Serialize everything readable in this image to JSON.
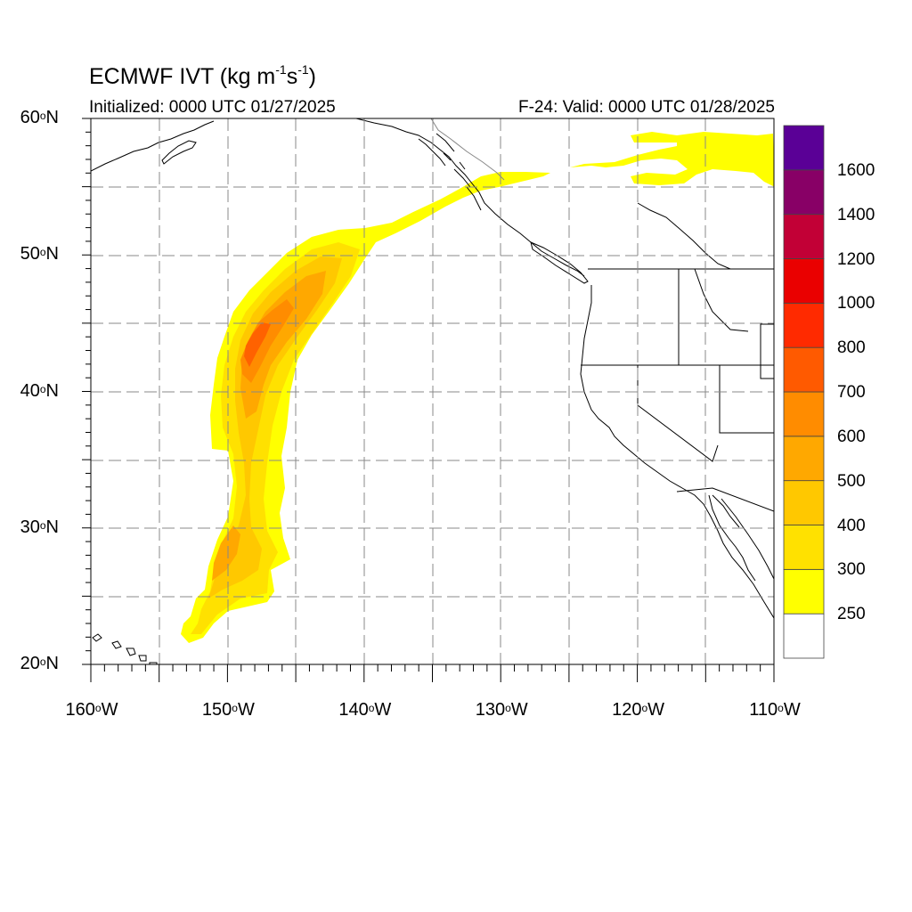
{
  "title": {
    "prefix": "ECMWF IVT (kg m",
    "exp1": "-1",
    "mid": "s",
    "exp2": "-1",
    "suffix": ")"
  },
  "subtitle_left": "Initialized: 0000 UTC 01/27/2025",
  "subtitle_right": "F-24: Valid: 0000 UTC 01/28/2025",
  "map": {
    "lon_range": [
      -160,
      -110
    ],
    "lat_range": [
      20,
      60
    ],
    "grid_interval_deg": 5,
    "lat_labels": [
      {
        "value": 60,
        "text": "60",
        "hemi": "N"
      },
      {
        "value": 50,
        "text": "50",
        "hemi": "N"
      },
      {
        "value": 40,
        "text": "40",
        "hemi": "N"
      },
      {
        "value": 30,
        "text": "30",
        "hemi": "N"
      },
      {
        "value": 20,
        "text": "20",
        "hemi": "N"
      }
    ],
    "lon_labels": [
      {
        "value": -160,
        "text": "160",
        "hemi": "W"
      },
      {
        "value": -150,
        "text": "150",
        "hemi": "W"
      },
      {
        "value": -140,
        "text": "140",
        "hemi": "W"
      },
      {
        "value": -130,
        "text": "130",
        "hemi": "W"
      },
      {
        "value": -120,
        "text": "120",
        "hemi": "W"
      },
      {
        "value": -110,
        "text": "110",
        "hemi": "W"
      }
    ],
    "degree_symbol": "o",
    "atmospheric_river": "Atmospheric river plume from near Hawaii (~23N 153W) extending north-northeast to ~56N 128W; peak IVT near 44N 148W"
  },
  "colorbar": {
    "levels": [
      "250",
      "300",
      "400",
      "500",
      "600",
      "700",
      "800",
      "1000",
      "1200",
      "1400",
      "1600"
    ],
    "colors": [
      "#ffffff",
      "#ffff00",
      "#ffe100",
      "#ffc800",
      "#ffa800",
      "#ff8c00",
      "#ff5a00",
      "#ff2a00",
      "#ea0000",
      "#c20036",
      "#880066",
      "#5a0096"
    ]
  }
}
